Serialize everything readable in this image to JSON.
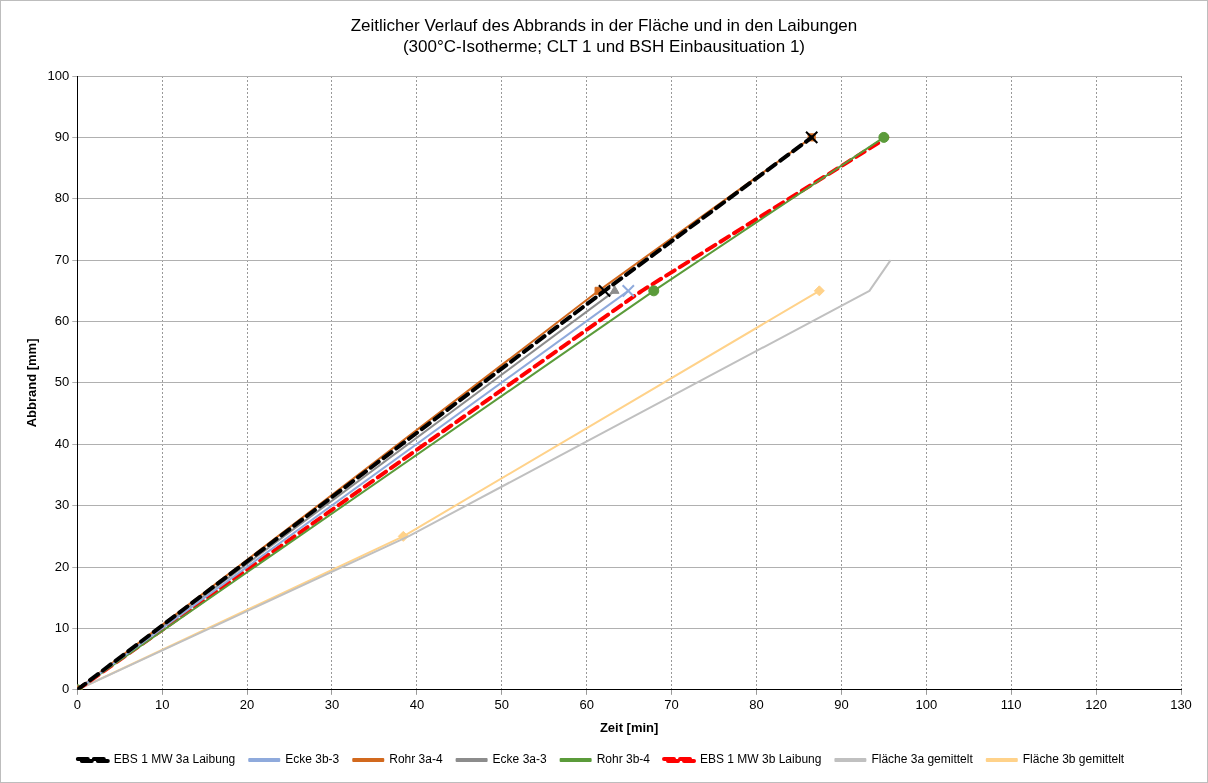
{
  "chart_data": {
    "type": "line",
    "title": "Zeitlicher Verlauf des Abbrands in der Fläche und in den Laibungen",
    "subtitle": "(300°C-Isotherme; CLT 1 und BSH Einbausituation 1)",
    "xlabel": "Zeit [min]",
    "ylabel": "Abbrand [mm]",
    "xlim": [
      0,
      130
    ],
    "xticks": [
      0,
      10,
      20,
      30,
      40,
      50,
      60,
      70,
      80,
      90,
      100,
      110,
      120,
      130
    ],
    "ylim": [
      0,
      100
    ],
    "yticks": [
      0,
      10,
      20,
      30,
      40,
      50,
      60,
      70,
      80,
      90,
      100
    ],
    "grid": true,
    "legend": "bottom",
    "series": [
      {
        "name": "Rohr 3a-4",
        "color": "#d2691e",
        "marker": "square",
        "line_style": "solid",
        "x": [
          0,
          61.4,
          86.5
        ],
        "values": [
          0,
          65,
          90
        ]
      },
      {
        "name": "Ecke 3a-3",
        "color": "#8c8c8c",
        "marker": "triangle",
        "line_style": "solid",
        "x": [
          0,
          63.3
        ],
        "values": [
          0,
          65
        ]
      },
      {
        "name": "EBS 1 MW 3a Laibung",
        "color": "#000000",
        "marker": "cross",
        "line_style": "dashed",
        "x": [
          0,
          62.1,
          86.5
        ],
        "values": [
          0,
          65,
          90
        ]
      },
      {
        "name": "Rohr 3b-4",
        "color": "#5b9b3a",
        "marker": "circle",
        "line_style": "solid",
        "x": [
          0,
          67.9,
          95
        ],
        "values": [
          0,
          65,
          90
        ]
      },
      {
        "name": "Ecke 3b-3",
        "color": "#8faadc",
        "marker": "cross",
        "line_style": "solid",
        "x": [
          0,
          64.9
        ],
        "values": [
          0,
          65
        ]
      },
      {
        "name": "EBS 1 MW 3b Laibung",
        "color": "#ff0000",
        "marker": "none",
        "line_style": "dashed",
        "x": [
          0,
          66.5,
          95.4
        ],
        "values": [
          0,
          65,
          90
        ]
      },
      {
        "name": "Fläche 3a gemittelt",
        "color": "#c0c0c0",
        "marker": "none",
        "line_style": "solid",
        "x": [
          0,
          39,
          93.3,
          95.8
        ],
        "values": [
          0,
          25,
          65,
          70
        ]
      },
      {
        "name": "Fläche 3b gemittelt",
        "color": "#ffd28a",
        "marker": "diamond",
        "line_style": "solid",
        "x": [
          0,
          38.4,
          87.4
        ],
        "values": [
          0,
          25,
          65
        ]
      }
    ]
  }
}
